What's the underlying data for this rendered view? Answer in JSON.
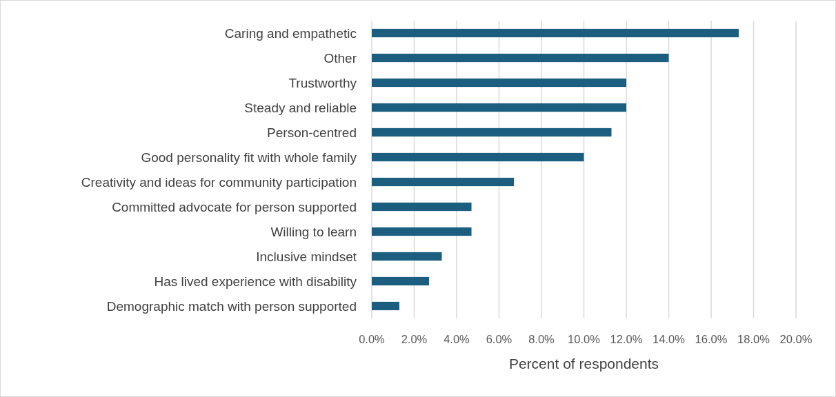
{
  "chart_data": {
    "type": "bar",
    "orientation": "horizontal",
    "xlabel": "Percent of respondents",
    "categories": [
      "Caring and empathetic",
      "Other",
      "Trustworthy",
      "Steady and reliable",
      "Person-centred",
      "Good personality fit with whole family",
      "Creativity and ideas for community participation",
      "Committed advocate for person supported",
      "Willing to learn",
      "Inclusive mindset",
      "Has lived experience with disability",
      "Demographic match with person supported"
    ],
    "values": [
      17.3,
      14.0,
      12.0,
      12.0,
      11.3,
      10.0,
      6.7,
      4.7,
      4.7,
      3.3,
      2.7,
      1.3
    ],
    "color": "#1b5e7f",
    "xlim": [
      0,
      20
    ],
    "xticks": [
      {
        "value": 0,
        "label": "0.0%"
      },
      {
        "value": 2,
        "label": "2.0%"
      },
      {
        "value": 4,
        "label": "4.0%"
      },
      {
        "value": 6,
        "label": "6.0%"
      },
      {
        "value": 8,
        "label": "8.0%"
      },
      {
        "value": 10,
        "label": "10.0%"
      },
      {
        "value": 12,
        "label": "12.0%"
      },
      {
        "value": 14,
        "label": "14.0%"
      },
      {
        "value": 16,
        "label": "16.0%"
      },
      {
        "value": 18,
        "label": "18.0%"
      },
      {
        "value": 20,
        "label": "20.0%"
      }
    ],
    "grid": "x"
  }
}
